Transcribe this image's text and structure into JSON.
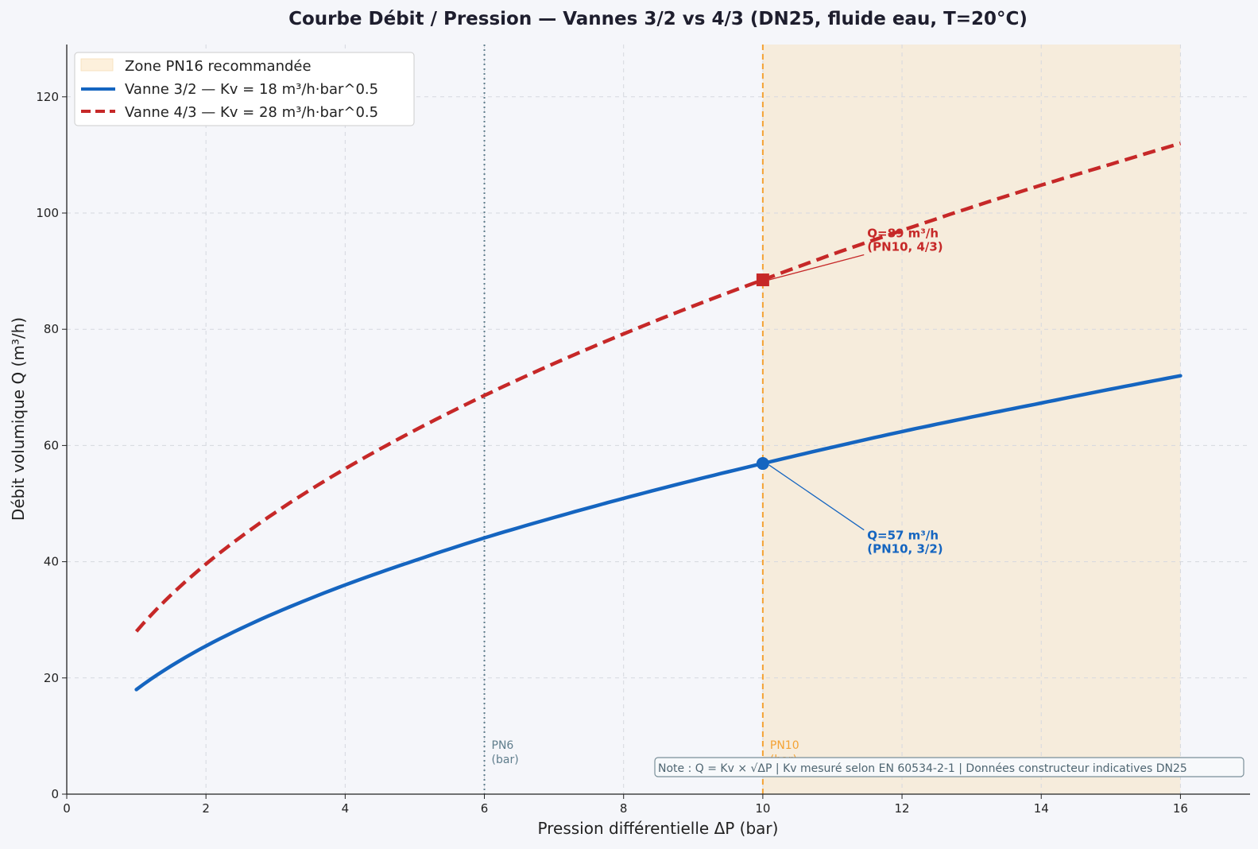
{
  "chart_data": {
    "type": "line",
    "title": "Courbe Débit / Pression — Vannes 3/2 vs 4/3 (DN25, fluide eau, T=20°C)",
    "xlabel": "Pression différentielle ΔP (bar)",
    "ylabel": "Débit volumique Q (m³/h)",
    "xlim": [
      0,
      17
    ],
    "ylim": [
      0,
      129
    ],
    "xticks": [
      0,
      2,
      4,
      6,
      8,
      10,
      12,
      14,
      16
    ],
    "yticks": [
      0,
      20,
      40,
      60,
      80,
      100,
      120
    ],
    "grid": true,
    "legend_position": "top-left",
    "shaded_region": {
      "label": "Zone PN16 recommandée",
      "x_start": 10,
      "x_end": 16,
      "color": "#fdf0dc"
    },
    "series": [
      {
        "name": "Vanne 3/2 — Kv = 18 m³/h·bar^0.5",
        "color": "#1565c0",
        "style": "solid",
        "x": [
          1,
          2,
          3,
          4,
          5,
          6,
          7,
          8,
          9,
          10,
          11,
          12,
          13,
          14,
          15,
          16
        ],
        "y": [
          18.0,
          25.5,
          31.2,
          36.0,
          40.2,
          44.1,
          47.6,
          50.9,
          54.0,
          56.9,
          59.7,
          62.4,
          64.9,
          67.3,
          69.7,
          72.0
        ]
      },
      {
        "name": "Vanne 4/3 — Kv = 28 m³/h·bar^0.5",
        "color": "#c62828",
        "style": "dashed",
        "x": [
          1,
          2,
          3,
          4,
          5,
          6,
          7,
          8,
          9,
          10,
          11,
          12,
          13,
          14,
          15,
          16
        ],
        "y": [
          28.0,
          39.6,
          48.5,
          56.0,
          62.6,
          68.6,
          74.1,
          79.2,
          84.0,
          88.5,
          92.9,
          97.0,
          101.0,
          104.8,
          108.4,
          112.0
        ]
      }
    ],
    "vlines": [
      {
        "x": 6,
        "label_line1": "PN6",
        "label_line2": "(bar)",
        "color": "#5f7d8c",
        "style": "dotted"
      },
      {
        "x": 10,
        "label_line1": "PN10",
        "label_line2": "(bar)",
        "color": "#f4a233",
        "style": "dashed"
      }
    ],
    "markers": [
      {
        "x": 10,
        "y": 56.9,
        "shape": "circle",
        "color": "#1565c0",
        "label_line1": "Q=57 m³/h",
        "label_line2": "(PN10, 3/2)",
        "text_x": 11.5,
        "text_y": 43
      },
      {
        "x": 10,
        "y": 88.5,
        "shape": "square",
        "color": "#c62828",
        "label_line1": "Q=89 m³/h",
        "label_line2": "(PN10, 4/3)",
        "text_x": 11.5,
        "text_y": 95
      }
    ],
    "note": "Note : Q = Kv × √ΔP  |  Kv mesuré selon EN 60534-2-1  |  Données constructeur indicatives DN25"
  }
}
